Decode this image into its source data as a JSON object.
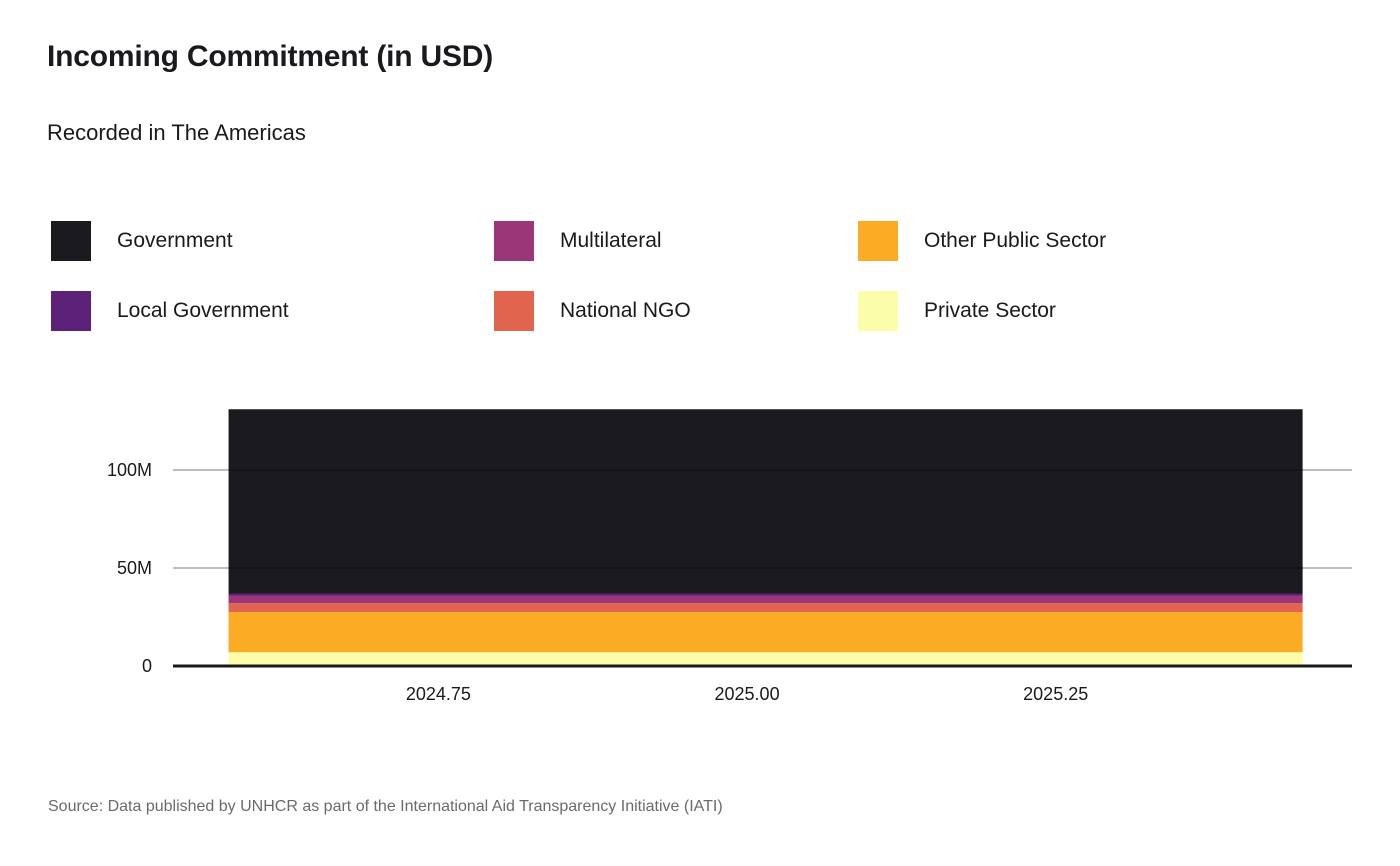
{
  "header": {
    "title": "Incoming Commitment (in USD)",
    "subtitle": "Recorded in The Americas"
  },
  "legend": {
    "items": [
      {
        "label": "Government",
        "color": "#1b1a1f"
      },
      {
        "label": "Multilateral",
        "color": "#9b3779"
      },
      {
        "label": "Other Public Sector",
        "color": "#fbac24"
      },
      {
        "label": "Local Government",
        "color": "#5c2179"
      },
      {
        "label": "National NGO",
        "color": "#e1644e"
      },
      {
        "label": "Private Sector",
        "color": "#fcfdaa"
      }
    ]
  },
  "chart_data": {
    "type": "area",
    "stacked": true,
    "title": "Incoming Commitment (in USD)",
    "subtitle": "Recorded in The Americas",
    "xlabel": "",
    "ylabel": "",
    "x": [
      2024.58,
      2025.45
    ],
    "xlim": [
      2024.535,
      2025.49
    ],
    "ylim": [
      0,
      130000000
    ],
    "xticks": [
      2024.75,
      2025.0,
      2025.25
    ],
    "xtick_labels": [
      "2024.75",
      "2025.00",
      "2025.25"
    ],
    "yticks": [
      0,
      50000000,
      100000000
    ],
    "ytick_labels": [
      "0",
      "50M",
      "100M"
    ],
    "grid": "horizontal",
    "series": [
      {
        "name": "Private Sector",
        "color": "#fcfdaa",
        "values": [
          7000000,
          7000000
        ]
      },
      {
        "name": "Other Public Sector",
        "color": "#fbac24",
        "values": [
          20500000,
          20500000
        ]
      },
      {
        "name": "National NGO",
        "color": "#e1644e",
        "values": [
          4500000,
          4500000
        ]
      },
      {
        "name": "Multilateral",
        "color": "#9b3779",
        "values": [
          4000000,
          4000000
        ]
      },
      {
        "name": "Local Government",
        "color": "#5c2179",
        "values": [
          1000000,
          1000000
        ]
      },
      {
        "name": "Government",
        "color": "#1b1a1f",
        "values": [
          94000000,
          94000000
        ]
      }
    ]
  },
  "footer": {
    "source": "Source: Data published by UNHCR as part of the International Aid Transparency Initiative (IATI)"
  }
}
